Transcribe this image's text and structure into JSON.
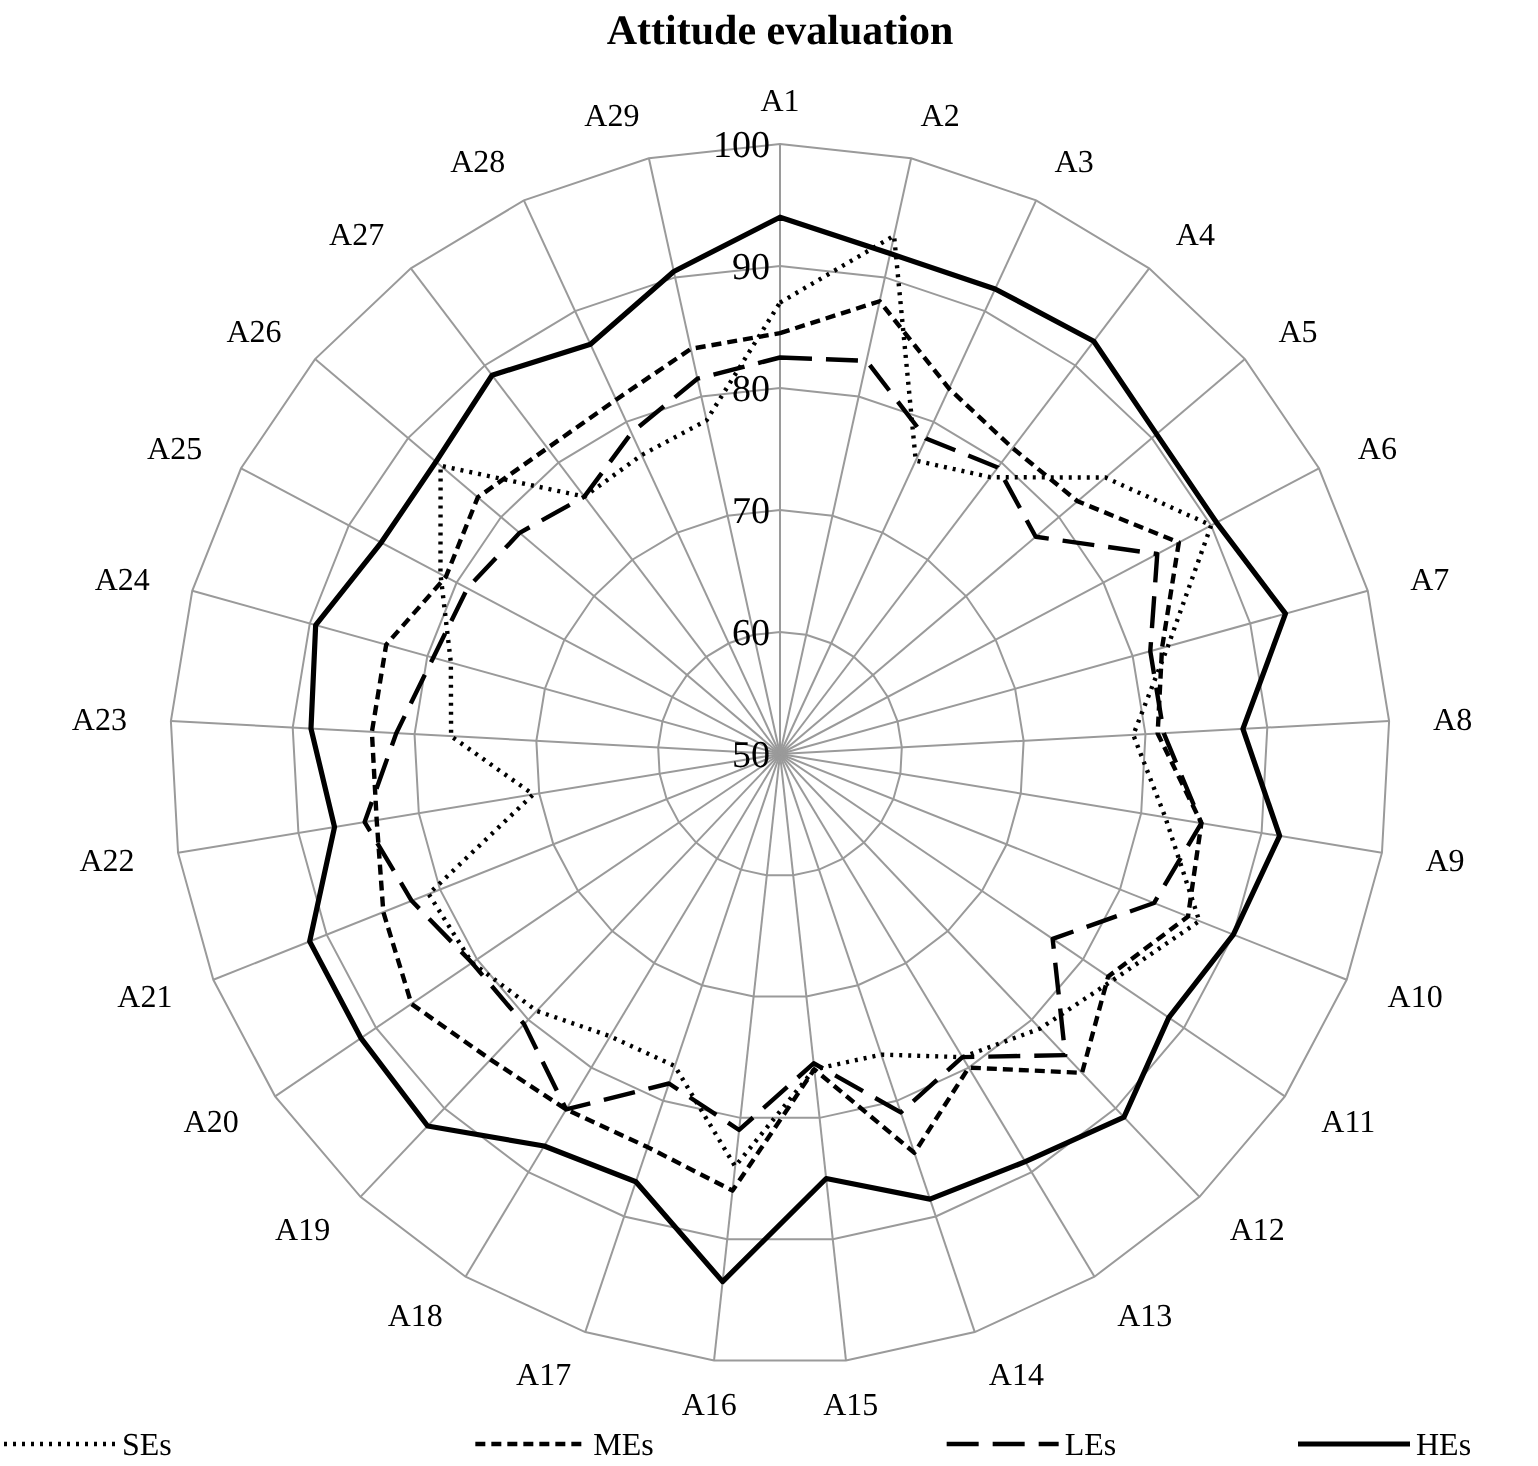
{
  "chart_data": {
    "type": "radar",
    "title": "Attitude evaluation",
    "categories": [
      "A1",
      "A2",
      "A3",
      "A4",
      "A5",
      "A6",
      "A7",
      "A8",
      "A9",
      "A10",
      "A11",
      "A12",
      "A13",
      "A14",
      "A15",
      "A16",
      "A17",
      "A18",
      "A19",
      "A20",
      "A21",
      "A22",
      "A23",
      "A24",
      "A25",
      "A26",
      "A27",
      "A28",
      "A29"
    ],
    "ylim": [
      50,
      100
    ],
    "yticks": [
      50,
      60,
      70,
      80,
      90,
      100
    ],
    "grid": true,
    "legend": "bottom",
    "series": [
      {
        "name": "SEs",
        "color": "#000000",
        "line_style": "dotted",
        "values": [
          87,
          93.5,
          76.5,
          78.5,
          85,
          90,
          83,
          79,
          82,
          87,
          83,
          81,
          79,
          76,
          76,
          84,
          77,
          77,
          79,
          80.5,
          81,
          70.5,
          77,
          78,
          81.5,
          86.5,
          76.5,
          77,
          78
        ]
      },
      {
        "name": "MEs",
        "color": "#000000",
        "line_style": "dashed",
        "values": [
          84.5,
          88,
          83,
          81.5,
          82,
          87,
          82.5,
          81,
          85,
          86,
          82.5,
          86,
          80,
          84.5,
          76,
          86,
          84,
          84,
          84.5,
          86.5,
          85,
          83.5,
          83.5,
          83.5,
          81,
          82.5,
          81.5,
          82,
          84
        ]
      },
      {
        "name": "LEs",
        "color": "#000000",
        "line_style": "long dashed",
        "values": [
          82.5,
          83,
          78.5,
          79.5,
          77.5,
          85,
          81.5,
          81.5,
          85,
          83,
          77,
          84,
          79,
          81,
          75.5,
          81,
          78.5,
          84,
          80.5,
          80.5,
          82.5,
          84.5,
          81.5,
          79.5,
          79,
          78,
          76.5,
          79,
          81.5
        ]
      },
      {
        "name": "HEs",
        "color": "#000000",
        "line_style": "solid",
        "values": [
          94,
          92,
          92,
          92.5,
          90.5,
          90.5,
          93,
          88,
          91.5,
          90,
          88.5,
          91,
          89,
          88.5,
          85,
          93.5,
          87,
          87.5,
          92,
          91.5,
          91.5,
          87,
          88.5,
          89.5,
          87,
          87,
          89,
          87,
          90.5
        ]
      }
    ]
  }
}
